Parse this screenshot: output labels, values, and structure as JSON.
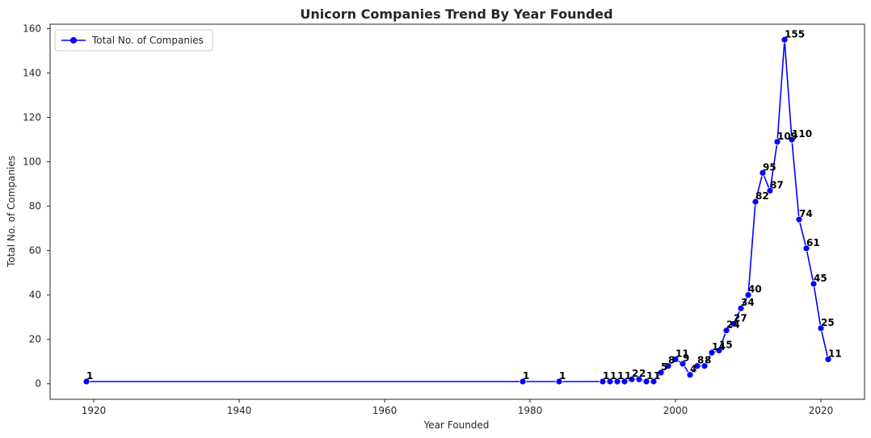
{
  "chart_data": {
    "type": "line",
    "title": "Unicorn Companies Trend By Year Founded",
    "xlabel": "Year Founded",
    "ylabel": "Total No. of Companies",
    "xlim": [
      1914,
      2026
    ],
    "ylim": [
      -7,
      162
    ],
    "xticks": [
      1920,
      1940,
      1960,
      1980,
      2000,
      2020
    ],
    "yticks": [
      0,
      20,
      40,
      60,
      80,
      100,
      120,
      140,
      160
    ],
    "grid": false,
    "legend_position": "top-left",
    "series": [
      {
        "name": "Total No. of Companies",
        "color": "#0000ff",
        "marker": "circle",
        "x": [
          1919,
          1979,
          1984,
          1990,
          1991,
          1992,
          1993,
          1994,
          1995,
          1996,
          1997,
          1998,
          1999,
          2000,
          2001,
          2002,
          2003,
          2004,
          2005,
          2006,
          2007,
          2008,
          2009,
          2010,
          2011,
          2012,
          2013,
          2014,
          2015,
          2016,
          2017,
          2018,
          2019,
          2020,
          2021
        ],
        "y": [
          1,
          1,
          1,
          1,
          1,
          1,
          1,
          2,
          2,
          1,
          1,
          5,
          8,
          11,
          9,
          4,
          8,
          8,
          14,
          15,
          24,
          27,
          34,
          40,
          82,
          95,
          87,
          109,
          155,
          110,
          74,
          61,
          45,
          25,
          11
        ]
      }
    ]
  }
}
